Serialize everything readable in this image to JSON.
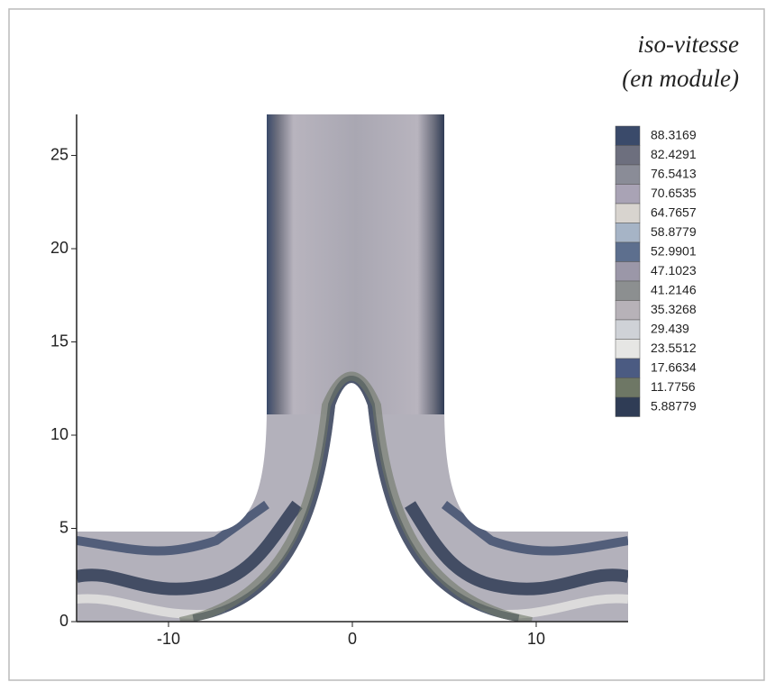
{
  "chart_data": {
    "type": "contour",
    "title": "iso-vitesse",
    "subtitle": "(en module)",
    "levels": [
      88.3169,
      82.4291,
      76.5413,
      70.6535,
      64.7657,
      58.8779,
      52.9901,
      47.1023,
      41.2146,
      35.3268,
      29.439,
      23.5512,
      17.6634,
      11.7756,
      5.88779
    ],
    "colors": [
      "#3a4a6a",
      "#6d6f7e",
      "#8a8c97",
      "#a9a3b5",
      "#d8d4cf",
      "#a6b4c6",
      "#5d6f8e",
      "#9b97a8",
      "#8c8f90",
      "#b7b2b8",
      "#cfd2d7",
      "#e6e6e4",
      "#4b5b82",
      "#6e7765",
      "#2f3c55"
    ],
    "xlim": [
      -15,
      15
    ],
    "xticks": [
      -10,
      0,
      10
    ],
    "ylim": [
      0,
      27.2
    ],
    "yticks": [
      0,
      5,
      10,
      15,
      20,
      25
    ]
  }
}
